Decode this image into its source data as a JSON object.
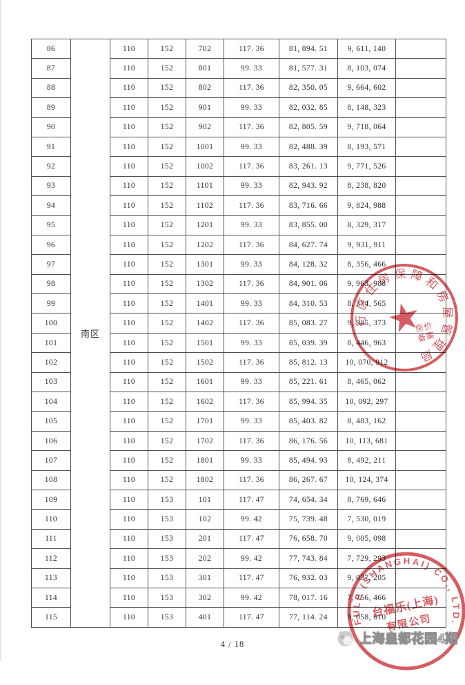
{
  "document": {
    "zone_label": "南区",
    "page_label": "4 / 18",
    "remark_value": "",
    "table_rows": [
      [
        "86",
        "110",
        "152",
        "702",
        "117. 36",
        "81, 894. 51",
        "9, 611, 140"
      ],
      [
        "87",
        "110",
        "152",
        "801",
        "99. 33",
        "81, 577. 31",
        "8, 103, 074"
      ],
      [
        "88",
        "110",
        "152",
        "802",
        "117. 36",
        "82, 350. 05",
        "9, 664, 602"
      ],
      [
        "89",
        "110",
        "152",
        "901",
        "99. 33",
        "82, 032. 85",
        "8, 148, 323"
      ],
      [
        "90",
        "110",
        "152",
        "902",
        "117. 36",
        "82, 805. 59",
        "9, 718, 064"
      ],
      [
        "91",
        "110",
        "152",
        "1001",
        "99. 33",
        "82, 488. 39",
        "8, 193, 571"
      ],
      [
        "92",
        "110",
        "152",
        "1002",
        "117. 36",
        "83, 261. 13",
        "9, 771, 526"
      ],
      [
        "93",
        "110",
        "152",
        "1101",
        "99. 33",
        "82, 943. 92",
        "8, 238, 820"
      ],
      [
        "94",
        "110",
        "152",
        "1102",
        "117. 36",
        "83, 716. 66",
        "9, 824, 988"
      ],
      [
        "95",
        "110",
        "152",
        "1201",
        "99. 33",
        "83, 855. 00",
        "8, 329, 317"
      ],
      [
        "96",
        "110",
        "152",
        "1202",
        "117. 36",
        "84, 627. 74",
        "9, 931, 911"
      ],
      [
        "97",
        "110",
        "152",
        "1301",
        "99. 33",
        "84, 128. 32",
        "8, 356, 466"
      ],
      [
        "98",
        "110",
        "152",
        "1302",
        "117. 36",
        "84, 901. 06",
        "9, 963, 988"
      ],
      [
        "99",
        "110",
        "152",
        "1401",
        "99. 33",
        "84, 310. 53",
        "8, 374, 565"
      ],
      [
        "100",
        "110",
        "152",
        "1402",
        "117. 36",
        "85, 083. 27",
        "9, 985, 373"
      ],
      [
        "101",
        "110",
        "152",
        "1501",
        "99. 33",
        "85, 039. 39",
        "8, 446, 963"
      ],
      [
        "102",
        "110",
        "152",
        "1502",
        "117. 36",
        "85, 812. 13",
        "10, 070, 912"
      ],
      [
        "103",
        "110",
        "152",
        "1601",
        "99. 33",
        "85, 221. 61",
        "8, 465, 062"
      ],
      [
        "104",
        "110",
        "152",
        "1602",
        "117. 36",
        "85, 994. 35",
        "10, 092, 297"
      ],
      [
        "105",
        "110",
        "152",
        "1701",
        "99. 33",
        "85, 403. 82",
        "8, 483, 162"
      ],
      [
        "106",
        "110",
        "152",
        "1702",
        "117. 36",
        "86, 176. 56",
        "10, 113, 681"
      ],
      [
        "107",
        "110",
        "152",
        "1801",
        "99. 33",
        "85, 494. 93",
        "8, 492, 211"
      ],
      [
        "108",
        "110",
        "152",
        "1802",
        "117. 36",
        "86, 267. 67",
        "10, 124, 374"
      ],
      [
        "109",
        "110",
        "153",
        "101",
        "117. 47",
        "74, 654. 34",
        "8, 769, 646"
      ],
      [
        "110",
        "110",
        "153",
        "102",
        "99. 42",
        "75, 739. 48",
        "7, 530, 019"
      ],
      [
        "111",
        "110",
        "153",
        "201",
        "117. 47",
        "76, 658. 70",
        "9, 005, 098"
      ],
      [
        "112",
        "110",
        "153",
        "202",
        "99. 42",
        "77, 743. 84",
        "7, 729, 293"
      ],
      [
        "113",
        "110",
        "153",
        "301",
        "117. 47",
        "76, 932. 03",
        "9, 037, 205"
      ],
      [
        "114",
        "110",
        "153",
        "302",
        "99. 42",
        "78, 017. 16",
        "7, 756, 466"
      ],
      [
        "115",
        "110",
        "153",
        "401",
        "117. 47",
        "77, 114. 24",
        "9, 058, 610"
      ]
    ]
  },
  "seals": {
    "government": {
      "arc_text": "上海市闵行区住房保障和房屋管理局",
      "star": "★",
      "inner_line1": "房价",
      "inner_line2": "备案",
      "color": "#d0454c"
    },
    "company": {
      "arc_text": "TAIFULE (SHANGHAI) CO., LTD.",
      "inner_line1": "台福乐(上海)",
      "inner_line2": "有限公司",
      "color": "#d0454c"
    }
  },
  "watermark": {
    "text": "上海皇都花园4期"
  },
  "page": {
    "number_label": "4 / 18"
  }
}
